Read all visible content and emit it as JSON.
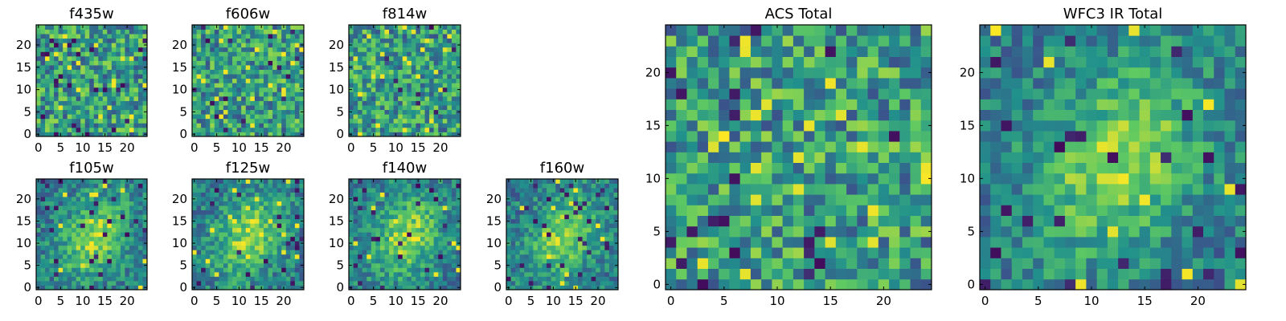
{
  "colormap": [
    "#440154",
    "#3b528b",
    "#21918c",
    "#5ec962",
    "#fde725"
  ],
  "chart_data": [
    {
      "id": "f435w",
      "type": "heatmap",
      "title": "f435w",
      "size": 25,
      "xticks": [
        0,
        5,
        10,
        15,
        20
      ],
      "yticks": [
        0,
        5,
        10,
        15,
        20
      ],
      "xlim": [
        0,
        25
      ],
      "ylim": [
        0,
        25
      ],
      "source": "small",
      "pattern": "noise"
    },
    {
      "id": "f606w",
      "type": "heatmap",
      "title": "f606w",
      "size": 25,
      "xticks": [
        0,
        5,
        10,
        15,
        20
      ],
      "yticks": [
        0,
        5,
        10,
        15,
        20
      ],
      "xlim": [
        0,
        25
      ],
      "ylim": [
        0,
        25
      ],
      "source": "small",
      "pattern": "noise"
    },
    {
      "id": "f814w",
      "type": "heatmap",
      "title": "f814w",
      "size": 25,
      "xticks": [
        0,
        5,
        10,
        15,
        20
      ],
      "yticks": [
        0,
        5,
        10,
        15,
        20
      ],
      "xlim": [
        0,
        25
      ],
      "ylim": [
        0,
        25
      ],
      "source": "small",
      "pattern": "noise"
    },
    {
      "id": "f105w",
      "type": "heatmap",
      "title": "f105w",
      "size": 25,
      "xticks": [
        0,
        5,
        10,
        15,
        20
      ],
      "yticks": [
        0,
        5,
        10,
        15,
        20
      ],
      "xlim": [
        0,
        25
      ],
      "ylim": [
        0,
        25
      ],
      "source": "small",
      "pattern": "blob"
    },
    {
      "id": "f125w",
      "type": "heatmap",
      "title": "f125w",
      "size": 25,
      "xticks": [
        0,
        5,
        10,
        15,
        20
      ],
      "yticks": [
        0,
        5,
        10,
        15,
        20
      ],
      "xlim": [
        0,
        25
      ],
      "ylim": [
        0,
        25
      ],
      "source": "small",
      "pattern": "blob"
    },
    {
      "id": "f140w",
      "type": "heatmap",
      "title": "f140w",
      "size": 25,
      "xticks": [
        0,
        5,
        10,
        15,
        20
      ],
      "yticks": [
        0,
        5,
        10,
        15,
        20
      ],
      "xlim": [
        0,
        25
      ],
      "ylim": [
        0,
        25
      ],
      "source": "small",
      "pattern": "blob"
    },
    {
      "id": "f160w",
      "type": "heatmap",
      "title": "f160w",
      "size": 25,
      "xticks": [
        0,
        5,
        10,
        15,
        20
      ],
      "yticks": [
        0,
        5,
        10,
        15,
        20
      ],
      "xlim": [
        0,
        25
      ],
      "ylim": [
        0,
        25
      ],
      "source": "small",
      "pattern": "blob"
    },
    {
      "id": "acs-total",
      "type": "heatmap",
      "title": "ACS Total",
      "size": 25,
      "xticks": [
        0,
        5,
        10,
        15,
        20
      ],
      "yticks": [
        0,
        5,
        10,
        15,
        20
      ],
      "xlim": [
        0,
        25
      ],
      "ylim": [
        0,
        25
      ],
      "source": "large",
      "pattern": "noise"
    },
    {
      "id": "wfc3-ir-total",
      "type": "heatmap",
      "title": "WFC3 IR Total",
      "size": 25,
      "xticks": [
        0,
        5,
        10,
        15,
        20
      ],
      "yticks": [
        0,
        5,
        10,
        15,
        20
      ],
      "xlim": [
        0,
        25
      ],
      "ylim": [
        0,
        25
      ],
      "source": "large",
      "pattern": "blob"
    }
  ]
}
